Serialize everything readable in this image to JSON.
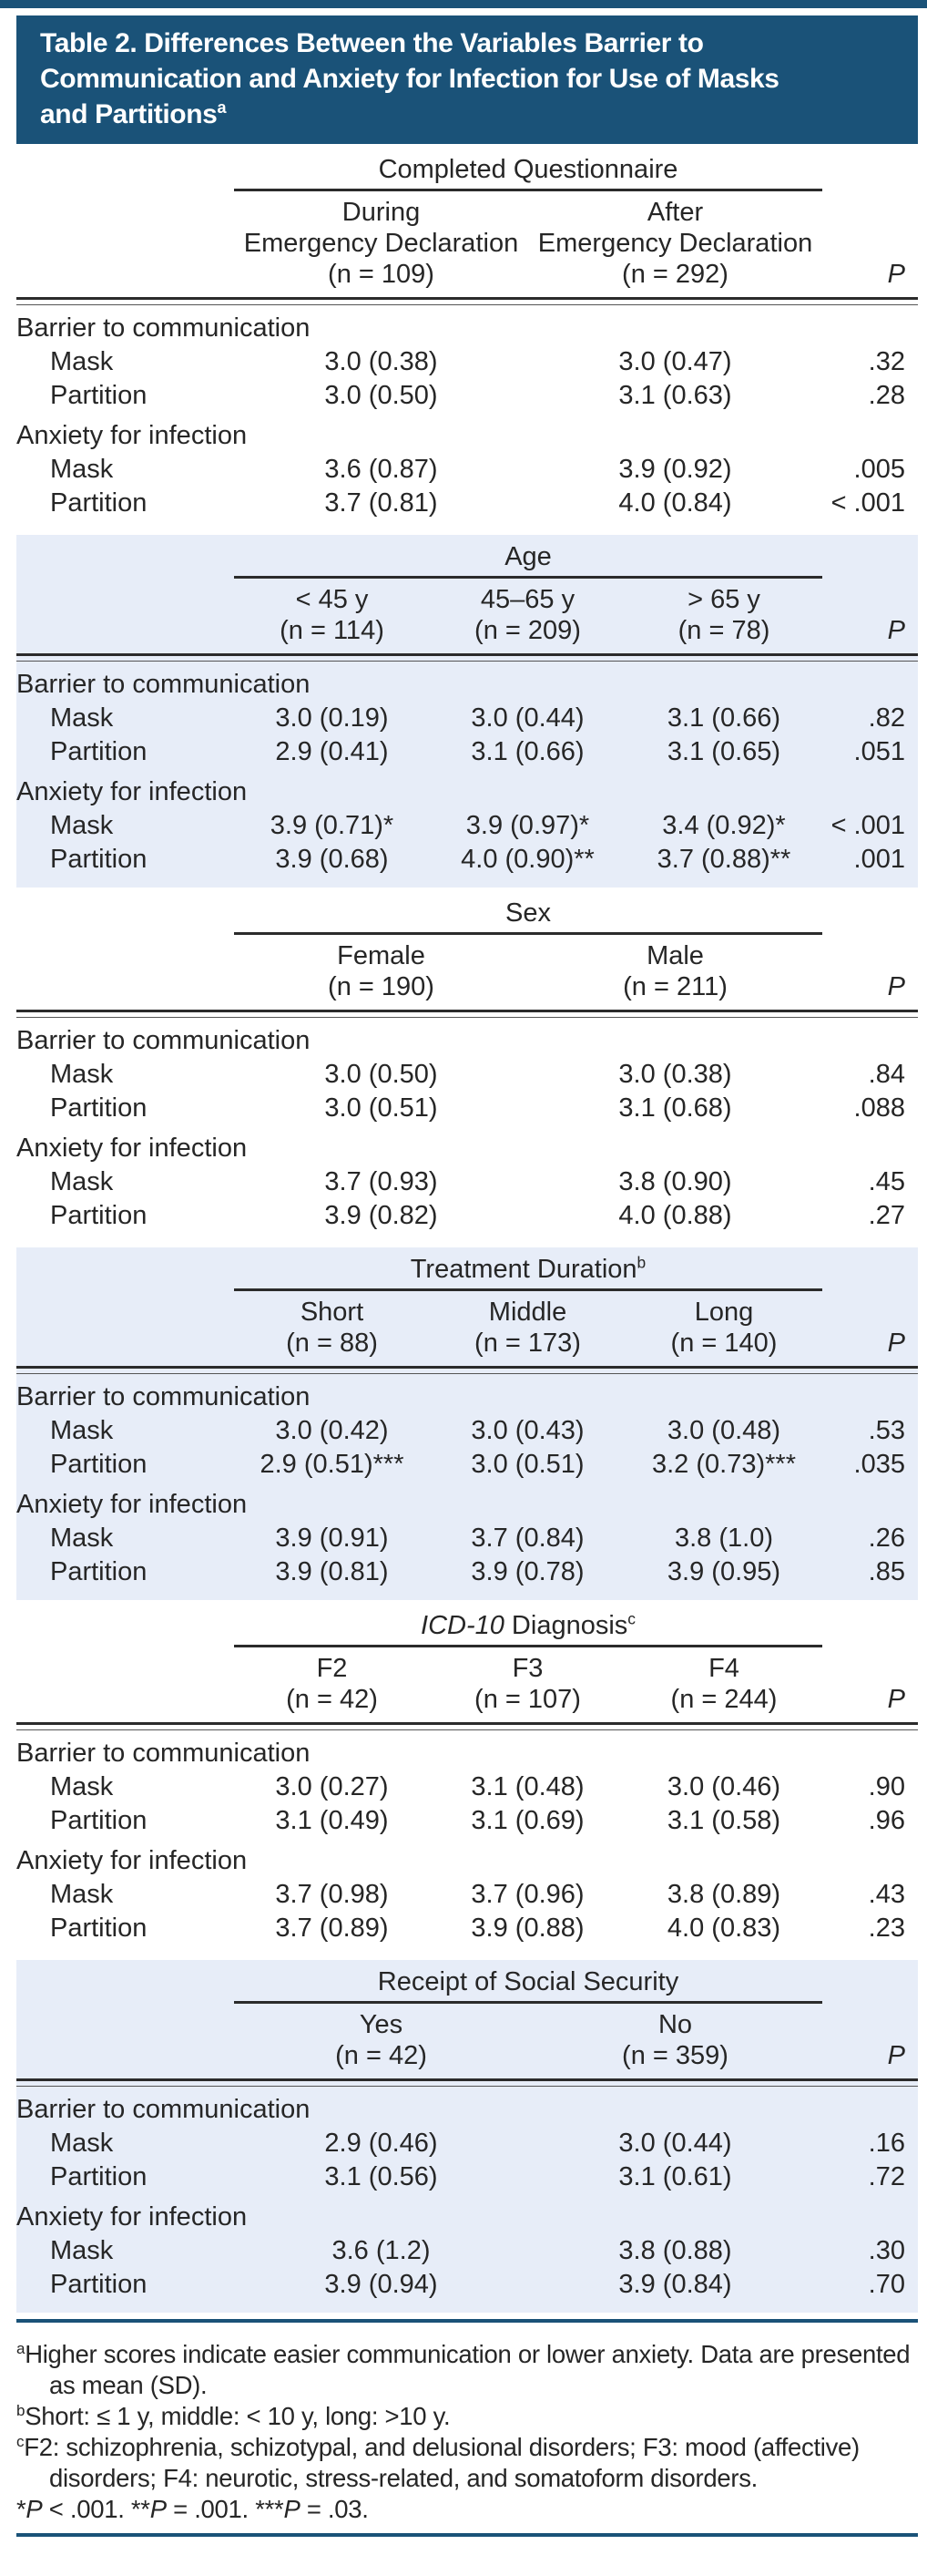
{
  "title": {
    "lines": [
      "Table 2. Differences Between the Variables Barrier to",
      "Communication and Anxiety for Infection for Use of Masks",
      "and Partitions"
    ],
    "sup": "a"
  },
  "colors": {
    "header_bg": "#1a5278",
    "band_bg": "#e7edf8",
    "rule_dark": "#2b2b2b",
    "title_text": "#ffffff"
  },
  "sections": [
    {
      "name": "Completed Questionnaire",
      "band": false,
      "title": "Completed Questionnaire",
      "p_header": "P",
      "columns": [
        {
          "label": "During",
          "label2": "Emergency Declaration",
          "n": "(n = 109)"
        },
        {
          "label": "After",
          "label2": "Emergency Declaration",
          "n": "(n = 292)"
        }
      ],
      "rows": [
        {
          "category": true,
          "label": "Barrier to communication"
        },
        {
          "label": "Mask",
          "values": [
            "3.0 (0.38)",
            "3.0 (0.47)"
          ],
          "p": ".32"
        },
        {
          "label": "Partition",
          "values": [
            "3.0 (0.50)",
            "3.1 (0.63)"
          ],
          "p": ".28"
        },
        {
          "category": true,
          "label": "Anxiety for infection"
        },
        {
          "label": "Mask",
          "values": [
            "3.6 (0.87)",
            "3.9 (0.92)"
          ],
          "p": ".005"
        },
        {
          "label": "Partition",
          "values": [
            "3.7 (0.81)",
            "4.0 (0.84)"
          ],
          "p": "< .001"
        }
      ]
    },
    {
      "name": "Age",
      "band": true,
      "title": "Age",
      "p_header": "P",
      "columns": [
        {
          "label": "< 45 y",
          "n": "(n = 114)"
        },
        {
          "label": "45–65 y",
          "n": "(n = 209)"
        },
        {
          "label": "> 65 y",
          "n": "(n = 78)"
        }
      ],
      "rows": [
        {
          "category": true,
          "label": "Barrier to communication"
        },
        {
          "label": "Mask",
          "values": [
            "3.0 (0.19)",
            "3.0 (0.44)",
            "3.1 (0.66)"
          ],
          "p": ".82"
        },
        {
          "label": "Partition",
          "values": [
            "2.9 (0.41)",
            "3.1 (0.66)",
            "3.1 (0.65)"
          ],
          "p": ".051"
        },
        {
          "category": true,
          "label": "Anxiety for infection"
        },
        {
          "label": "Mask",
          "values": [
            "3.9 (0.71)*",
            "3.9 (0.97)*",
            "3.4 (0.92)*"
          ],
          "p": "< .001"
        },
        {
          "label": "Partition",
          "values": [
            "3.9 (0.68)",
            "4.0 (0.90)**",
            "3.7 (0.88)**"
          ],
          "p": ".001"
        }
      ]
    },
    {
      "name": "Sex",
      "band": false,
      "title": "Sex",
      "p_header": "P",
      "columns": [
        {
          "label": "Female",
          "n": "(n = 190)"
        },
        {
          "label": "Male",
          "n": "(n = 211)"
        }
      ],
      "rows": [
        {
          "category": true,
          "label": "Barrier to communication"
        },
        {
          "label": "Mask",
          "values": [
            "3.0 (0.50)",
            "3.0 (0.38)"
          ],
          "p": ".84"
        },
        {
          "label": "Partition",
          "values": [
            "3.0 (0.51)",
            "3.1 (0.68)"
          ],
          "p": ".088"
        },
        {
          "category": true,
          "label": "Anxiety for infection"
        },
        {
          "label": "Mask",
          "values": [
            "3.7 (0.93)",
            "3.8 (0.90)"
          ],
          "p": ".45"
        },
        {
          "label": "Partition",
          "values": [
            "3.9 (0.82)",
            "4.0 (0.88)"
          ],
          "p": ".27"
        }
      ]
    },
    {
      "name": "Treatment Duration",
      "band": true,
      "title": "Treatment Duration",
      "title_sup": "b",
      "p_header": "P",
      "columns": [
        {
          "label": "Short",
          "n": "(n = 88)"
        },
        {
          "label": "Middle",
          "n": "(n = 173)"
        },
        {
          "label": "Long",
          "n": "(n = 140)"
        }
      ],
      "rows": [
        {
          "category": true,
          "label": "Barrier to communication"
        },
        {
          "label": "Mask",
          "values": [
            "3.0 (0.42)",
            "3.0 (0.43)",
            "3.0 (0.48)"
          ],
          "p": ".53"
        },
        {
          "label": "Partition",
          "values": [
            "2.9 (0.51)***",
            "3.0 (0.51)",
            "3.2 (0.73)***"
          ],
          "p": ".035"
        },
        {
          "category": true,
          "label": "Anxiety for infection"
        },
        {
          "label": "Mask",
          "values": [
            "3.9 (0.91)",
            "3.7 (0.84)",
            "3.8 (1.0)"
          ],
          "p": ".26"
        },
        {
          "label": "Partition",
          "values": [
            "3.9 (0.81)",
            "3.9 (0.78)",
            "3.9 (0.95)"
          ],
          "p": ".85"
        }
      ]
    },
    {
      "name": "ICD-10 Diagnosis",
      "band": false,
      "title_em": "ICD-10",
      "title": " Diagnosis",
      "title_sup": "c",
      "p_header": "P",
      "columns": [
        {
          "label": "F2",
          "n": "(n = 42)"
        },
        {
          "label": "F3",
          "n": "(n = 107)"
        },
        {
          "label": "F4",
          "n": "(n = 244)"
        }
      ],
      "rows": [
        {
          "category": true,
          "label": "Barrier to communication"
        },
        {
          "label": "Mask",
          "values": [
            "3.0 (0.27)",
            "3.1 (0.48)",
            "3.0 (0.46)"
          ],
          "p": ".90"
        },
        {
          "label": "Partition",
          "values": [
            "3.1 (0.49)",
            "3.1 (0.69)",
            "3.1 (0.58)"
          ],
          "p": ".96"
        },
        {
          "category": true,
          "label": "Anxiety for infection"
        },
        {
          "label": "Mask",
          "values": [
            "3.7 (0.98)",
            "3.7 (0.96)",
            "3.8 (0.89)"
          ],
          "p": ".43"
        },
        {
          "label": "Partition",
          "values": [
            "3.7 (0.89)",
            "3.9 (0.88)",
            "4.0 (0.83)"
          ],
          "p": ".23"
        }
      ]
    },
    {
      "name": "Receipt of Social Security",
      "band": true,
      "title": "Receipt of Social Security",
      "p_header": "P",
      "columns": [
        {
          "label": "Yes",
          "n": "(n = 42)"
        },
        {
          "label": "No",
          "n": "(n = 359)"
        }
      ],
      "rows": [
        {
          "category": true,
          "label": "Barrier to communication"
        },
        {
          "label": "Mask",
          "values": [
            "2.9 (0.46)",
            "3.0 (0.44)"
          ],
          "p": ".16"
        },
        {
          "label": "Partition",
          "values": [
            "3.1 (0.56)",
            "3.1 (0.61)"
          ],
          "p": ".72"
        },
        {
          "category": true,
          "label": "Anxiety for infection"
        },
        {
          "label": "Mask",
          "values": [
            "3.6 (1.2)",
            "3.8 (0.88)"
          ],
          "p": ".30"
        },
        {
          "label": "Partition",
          "values": [
            "3.9 (0.94)",
            "3.9 (0.84)"
          ],
          "p": ".70"
        }
      ]
    }
  ],
  "footnotes": [
    {
      "sup": "a",
      "text": "Higher scores indicate easier communication or lower anxiety. Data are presented as mean (SD)."
    },
    {
      "sup": "b",
      "text": "Short: ≤ 1 y, middle: < 10 y, long: >10 y."
    },
    {
      "sup": "c",
      "text": "F2: schizophrenia, schizotypal, and delusional disorders; F3: mood (affective) disorders; F4: neurotic, stress-related, and somatoform disorders."
    },
    {
      "seg": {
        "s1": "*",
        "p": "P",
        "r1": " < .001. ",
        "s2": "**",
        "r2": " = .001. ",
        "s3": "***",
        "r3": " = .03."
      }
    }
  ]
}
